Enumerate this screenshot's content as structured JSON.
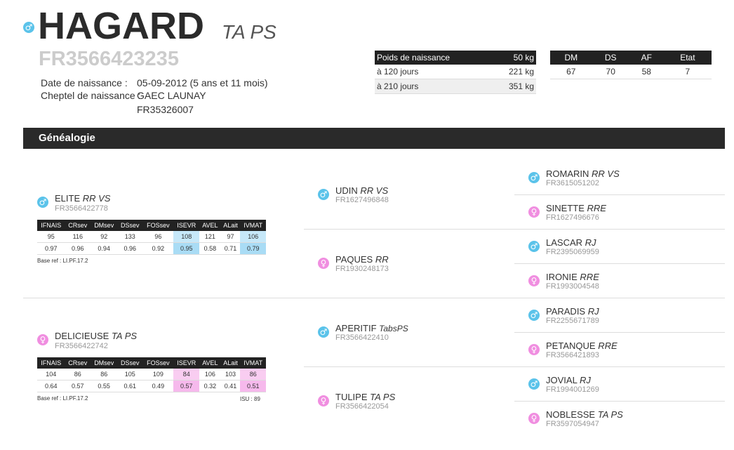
{
  "header": {
    "sex_icon": "male-symbol",
    "name": "HAGARD",
    "breed": "TA PS",
    "id": "FR3566423235",
    "birth_date_label": "Date de naissance :",
    "birth_date_value": "05-09-2012 (5 ans et 11 mois)",
    "herd_label": "Cheptel de naissance :",
    "herd_name": "GAEC LAUNAY",
    "herd_id": "FR35326007"
  },
  "weights": {
    "header_label": "Poids de naissance",
    "header_value": "50 kg",
    "rows": [
      {
        "label": "à 120 jours",
        "value": "221 kg"
      },
      {
        "label": "à 210 jours",
        "value": "351 kg"
      }
    ]
  },
  "scores": {
    "headers": [
      "DM",
      "DS",
      "AF",
      "Etat"
    ],
    "values": [
      "67",
      "70",
      "58",
      "7"
    ]
  },
  "genealogy": {
    "title": "Généalogie",
    "sire": {
      "name": "ELITE",
      "breed": "RR VS",
      "id": "FR3566422778",
      "index_headers": [
        "IFNAIS",
        "CRsev",
        "DMsev",
        "DSsev",
        "FOSsev",
        "ISEVR",
        "AVEL",
        "ALait",
        "IVMAT"
      ],
      "index_values": [
        "95",
        "116",
        "92",
        "133",
        "96",
        "108",
        "121",
        "97",
        "106"
      ],
      "index_cd": [
        "0.97",
        "0.96",
        "0.94",
        "0.96",
        "0.92",
        "0.95",
        "0.58",
        "0.71",
        "0.79"
      ],
      "base_ref": "Base ref : LI.PF.17.2"
    },
    "dam": {
      "name": "DELICIEUSE",
      "breed": "TA PS",
      "id": "FR3566422742",
      "index_headers": [
        "IFNAIS",
        "CRsev",
        "DMsev",
        "DSsev",
        "FOSsev",
        "ISEVR",
        "AVEL",
        "ALait",
        "IVMAT"
      ],
      "index_values": [
        "104",
        "86",
        "86",
        "105",
        "109",
        "84",
        "106",
        "103",
        "86"
      ],
      "index_cd": [
        "0.64",
        "0.57",
        "0.55",
        "0.61",
        "0.49",
        "0.57",
        "0.32",
        "0.41",
        "0.51"
      ],
      "base_ref": "Base ref : LI.PF.17.2",
      "isu": "ISU : 89"
    },
    "grandparents": [
      {
        "name": "UDIN",
        "breed": "RR VS",
        "id": "FR1627496848"
      },
      {
        "name": "PAQUES",
        "breed": "RR",
        "id": "FR1930248173"
      },
      {
        "name": "APERITIF",
        "breed": "TabsPS",
        "id": "FR3566422410"
      },
      {
        "name": "TULIPE",
        "breed": "TA PS",
        "id": "FR3566422054"
      }
    ],
    "great_grandparents": [
      {
        "name": "ROMARIN",
        "breed": "RR VS",
        "id": "FR3615051202"
      },
      {
        "name": "SINETTE",
        "breed": "RRE",
        "id": "FR1627496676"
      },
      {
        "name": "LASCAR",
        "breed": "RJ",
        "id": "FR2395069959"
      },
      {
        "name": "IRONIE",
        "breed": "RRE",
        "id": "FR1993004548"
      },
      {
        "name": "PARADIS",
        "breed": "RJ",
        "id": "FR2255671789"
      },
      {
        "name": "PETANQUE",
        "breed": "RRE",
        "id": "FR3566421893"
      },
      {
        "name": "JOVIAL",
        "breed": "RJ",
        "id": "FR1994001269"
      },
      {
        "name": "NOBLESSE",
        "breed": "TA PS",
        "id": "FR3597054947"
      }
    ]
  },
  "colors": {
    "male": "#5bc3ea",
    "female": "#f08ee0",
    "bar": "#2a2a2a"
  },
  "icons": {
    "male": "male-sign-icon",
    "female": "female-sign-icon"
  }
}
